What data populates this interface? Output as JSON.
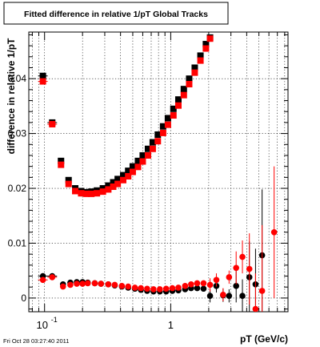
{
  "chart_data": {
    "type": "scatter",
    "title": "Fitted difference in relative 1/pT  Global Tracks",
    "xlabel": "pT (GeV/c)",
    "ylabel": "difference in relative 1/pT",
    "timestamp": "Fri Oct 28 03:27:40 2011",
    "x_scale": "log",
    "xlim": [
      0.075,
      8.5
    ],
    "ylim": [
      -0.0025,
      0.0485
    ],
    "x_ticks": [
      {
        "value": 0.1,
        "base": "10",
        "exp": "-1"
      },
      {
        "value": 1,
        "label": "1"
      }
    ],
    "y_ticks": [
      {
        "value": 0,
        "label": "0"
      },
      {
        "value": 0.01,
        "label": "0.01"
      },
      {
        "value": 0.02,
        "label": "0.02"
      },
      {
        "value": 0.03,
        "label": "0.03"
      },
      {
        "value": 0.04,
        "label": "0.04"
      }
    ],
    "grid": true,
    "colors": {
      "black_series": "#000000",
      "red_series": "#ff0000"
    },
    "series": [
      {
        "color": "black",
        "marker": "square",
        "points": [
          {
            "x": 0.097,
            "y": 0.0405
          },
          {
            "x": 0.115,
            "y": 0.032
          },
          {
            "x": 0.135,
            "y": 0.025
          },
          {
            "x": 0.155,
            "y": 0.0215
          },
          {
            "x": 0.175,
            "y": 0.02
          },
          {
            "x": 0.195,
            "y": 0.0195
          },
          {
            "x": 0.215,
            "y": 0.0193
          },
          {
            "x": 0.235,
            "y": 0.0194
          },
          {
            "x": 0.26,
            "y": 0.0196
          },
          {
            "x": 0.29,
            "y": 0.02
          },
          {
            "x": 0.32,
            "y": 0.0205
          },
          {
            "x": 0.35,
            "y": 0.0211
          },
          {
            "x": 0.38,
            "y": 0.0217
          },
          {
            "x": 0.42,
            "y": 0.0224
          },
          {
            "x": 0.46,
            "y": 0.0232
          },
          {
            "x": 0.5,
            "y": 0.024
          },
          {
            "x": 0.55,
            "y": 0.025
          },
          {
            "x": 0.6,
            "y": 0.026
          },
          {
            "x": 0.66,
            "y": 0.0272
          },
          {
            "x": 0.72,
            "y": 0.0284
          },
          {
            "x": 0.79,
            "y": 0.0298
          },
          {
            "x": 0.87,
            "y": 0.0313
          },
          {
            "x": 0.95,
            "y": 0.0328
          },
          {
            "x": 1.05,
            "y": 0.0345
          },
          {
            "x": 1.15,
            "y": 0.0362
          },
          {
            "x": 1.27,
            "y": 0.0381
          },
          {
            "x": 1.4,
            "y": 0.04
          },
          {
            "x": 1.55,
            "y": 0.042
          },
          {
            "x": 1.72,
            "y": 0.0442
          },
          {
            "x": 1.9,
            "y": 0.0463
          },
          {
            "x": 2.05,
            "y": 0.0475
          }
        ]
      },
      {
        "color": "red",
        "marker": "square",
        "points": [
          {
            "x": 0.097,
            "y": 0.0395
          },
          {
            "x": 0.115,
            "y": 0.0317
          },
          {
            "x": 0.135,
            "y": 0.0243
          },
          {
            "x": 0.155,
            "y": 0.0208
          },
          {
            "x": 0.175,
            "y": 0.0195
          },
          {
            "x": 0.195,
            "y": 0.0191
          },
          {
            "x": 0.215,
            "y": 0.019
          },
          {
            "x": 0.235,
            "y": 0.019
          },
          {
            "x": 0.26,
            "y": 0.0191
          },
          {
            "x": 0.29,
            "y": 0.0194
          },
          {
            "x": 0.32,
            "y": 0.0198
          },
          {
            "x": 0.35,
            "y": 0.0203
          },
          {
            "x": 0.38,
            "y": 0.0208
          },
          {
            "x": 0.42,
            "y": 0.0215
          },
          {
            "x": 0.46,
            "y": 0.0222
          },
          {
            "x": 0.5,
            "y": 0.023
          },
          {
            "x": 0.55,
            "y": 0.0239
          },
          {
            "x": 0.6,
            "y": 0.0249
          },
          {
            "x": 0.66,
            "y": 0.026
          },
          {
            "x": 0.72,
            "y": 0.0272
          },
          {
            "x": 0.79,
            "y": 0.0286
          },
          {
            "x": 0.87,
            "y": 0.0301
          },
          {
            "x": 0.95,
            "y": 0.0316
          },
          {
            "x": 1.05,
            "y": 0.0333
          },
          {
            "x": 1.15,
            "y": 0.0351
          },
          {
            "x": 1.27,
            "y": 0.037
          },
          {
            "x": 1.4,
            "y": 0.039
          },
          {
            "x": 1.55,
            "y": 0.0411
          },
          {
            "x": 1.72,
            "y": 0.0433
          },
          {
            "x": 1.9,
            "y": 0.0455
          },
          {
            "x": 2.05,
            "y": 0.0473
          }
        ]
      },
      {
        "color": "black",
        "marker": "circle",
        "points": [
          {
            "x": 0.097,
            "y": 0.004
          },
          {
            "x": 0.115,
            "y": 0.004
          },
          {
            "x": 0.14,
            "y": 0.0025
          },
          {
            "x": 0.16,
            "y": 0.0028
          },
          {
            "x": 0.18,
            "y": 0.0029
          },
          {
            "x": 0.2,
            "y": 0.0029
          },
          {
            "x": 0.22,
            "y": 0.0028
          },
          {
            "x": 0.25,
            "y": 0.0027
          },
          {
            "x": 0.28,
            "y": 0.0026
          },
          {
            "x": 0.32,
            "y": 0.0025
          },
          {
            "x": 0.36,
            "y": 0.0023
          },
          {
            "x": 0.41,
            "y": 0.0021
          },
          {
            "x": 0.46,
            "y": 0.0019
          },
          {
            "x": 0.52,
            "y": 0.0017
          },
          {
            "x": 0.58,
            "y": 0.0015
          },
          {
            "x": 0.65,
            "y": 0.0013
          },
          {
            "x": 0.73,
            "y": 0.0012
          },
          {
            "x": 0.82,
            "y": 0.0012
          },
          {
            "x": 0.92,
            "y": 0.0012
          },
          {
            "x": 1.03,
            "y": 0.0013
          },
          {
            "x": 1.15,
            "y": 0.0014
          },
          {
            "x": 1.3,
            "y": 0.0016
          },
          {
            "x": 1.45,
            "y": 0.0018
          },
          {
            "x": 1.62,
            "y": 0.0018
          },
          {
            "x": 1.82,
            "y": 0.0017
          },
          {
            "x": 2.05,
            "y": 0.0004
          },
          {
            "x": 2.3,
            "y": 0.0022
          },
          {
            "x": 2.6,
            "y": 0.0005
          },
          {
            "x": 2.9,
            "y": 0.0004
          },
          {
            "x": 3.3,
            "y": 0.0022
          },
          {
            "x": 3.7,
            "y": 0.0004
          },
          {
            "x": 4.2,
            "y": 0.0038
          },
          {
            "x": 4.7,
            "y": 0.0025
          },
          {
            "x": 5.3,
            "y": 0.0078
          }
        ]
      },
      {
        "color": "red",
        "marker": "circle",
        "points": [
          {
            "x": 0.097,
            "y": 0.0033
          },
          {
            "x": 0.115,
            "y": 0.0038
          },
          {
            "x": 0.14,
            "y": 0.0021
          },
          {
            "x": 0.16,
            "y": 0.0024
          },
          {
            "x": 0.18,
            "y": 0.0026
          },
          {
            "x": 0.2,
            "y": 0.0026
          },
          {
            "x": 0.22,
            "y": 0.0027
          },
          {
            "x": 0.25,
            "y": 0.0027
          },
          {
            "x": 0.28,
            "y": 0.0026
          },
          {
            "x": 0.32,
            "y": 0.0025
          },
          {
            "x": 0.36,
            "y": 0.0024
          },
          {
            "x": 0.41,
            "y": 0.0022
          },
          {
            "x": 0.46,
            "y": 0.0021
          },
          {
            "x": 0.52,
            "y": 0.0019
          },
          {
            "x": 0.58,
            "y": 0.0018
          },
          {
            "x": 0.65,
            "y": 0.0017
          },
          {
            "x": 0.73,
            "y": 0.0016
          },
          {
            "x": 0.82,
            "y": 0.0016
          },
          {
            "x": 0.92,
            "y": 0.0017
          },
          {
            "x": 1.03,
            "y": 0.0018
          },
          {
            "x": 1.15,
            "y": 0.0019
          },
          {
            "x": 1.3,
            "y": 0.0022
          },
          {
            "x": 1.45,
            "y": 0.0025
          },
          {
            "x": 1.62,
            "y": 0.0027
          },
          {
            "x": 1.82,
            "y": 0.0027
          },
          {
            "x": 2.05,
            "y": 0.0024
          },
          {
            "x": 2.3,
            "y": 0.0033
          },
          {
            "x": 2.6,
            "y": 0.0006
          },
          {
            "x": 2.9,
            "y": 0.0038
          },
          {
            "x": 3.3,
            "y": 0.0055
          },
          {
            "x": 3.7,
            "y": 0.0075
          },
          {
            "x": 4.2,
            "y": 0.0053
          },
          {
            "x": 4.7,
            "y": -0.002
          },
          {
            "x": 5.3,
            "y": 0.0013
          },
          {
            "x": 6.6,
            "y": 0.012
          }
        ]
      }
    ]
  }
}
